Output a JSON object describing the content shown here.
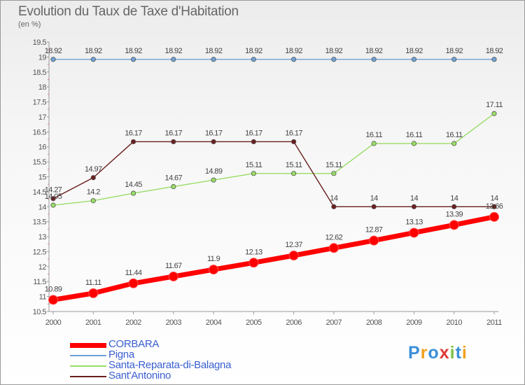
{
  "title": "Evolution du Taux de Taxe d'Habitation",
  "subtitle": "(en %)",
  "logo": "Proxiti",
  "chart_data": {
    "type": "line",
    "x": [
      "2000",
      "2001",
      "2002",
      "2003",
      "2004",
      "2005",
      "2006",
      "2007",
      "2008",
      "2009",
      "2010",
      "2011"
    ],
    "ylim": [
      10.5,
      19.5
    ],
    "yticks": [
      "10.5",
      "11",
      "11.5",
      "12",
      "12.5",
      "13",
      "13.5",
      "14",
      "14.5",
      "15",
      "15.5",
      "16",
      "16.5",
      "17",
      "17.5",
      "18",
      "18.5",
      "19",
      "19.5"
    ],
    "grid": false,
    "legend_position": "bottom-left",
    "series": [
      {
        "name": "CORBARA",
        "color": "#ff0000",
        "values": [
          10.89,
          11.11,
          11.44,
          11.67,
          11.9,
          12.13,
          12.37,
          12.62,
          12.87,
          13.13,
          13.39,
          13.66
        ],
        "labels": [
          "10.89",
          "11.11",
          "11.44",
          "11.67",
          "11.9",
          "12.13",
          "12.37",
          "12.62",
          "12.87",
          "13.13",
          "13.39",
          "13.66"
        ]
      },
      {
        "name": "Pigna",
        "color": "#6fa3d8",
        "values": [
          18.92,
          18.92,
          18.92,
          18.92,
          18.92,
          18.92,
          18.92,
          18.92,
          18.92,
          18.92,
          18.92,
          18.92
        ],
        "labels": [
          "18.92",
          "18.92",
          "18.92",
          "18.92",
          "18.92",
          "18.92",
          "18.92",
          "18.92",
          "18.92",
          "18.92",
          "18.92",
          "18.92"
        ]
      },
      {
        "name": "Santa-Reparata-di-Balagna",
        "color": "#99dd66",
        "values": [
          14.05,
          14.2,
          14.45,
          14.67,
          14.89,
          15.11,
          15.11,
          15.11,
          16.11,
          16.11,
          16.11,
          17.11
        ],
        "labels": [
          "14.05",
          "14.2",
          "14.45",
          "14.67",
          "14.89",
          "15.11",
          "15.11",
          "15.11",
          "16.11",
          "16.11",
          "16.11",
          "17.11"
        ]
      },
      {
        "name": "Sant'Antonino",
        "color": "#6b1e1e",
        "values": [
          14.27,
          14.97,
          16.17,
          16.17,
          16.17,
          16.17,
          16.17,
          14,
          14,
          14,
          14,
          14
        ],
        "labels": [
          "14.27",
          "14.97",
          "16.17",
          "16.17",
          "16.17",
          "16.17",
          "16.17",
          "14",
          "14",
          "14",
          "14",
          "14"
        ]
      }
    ]
  }
}
